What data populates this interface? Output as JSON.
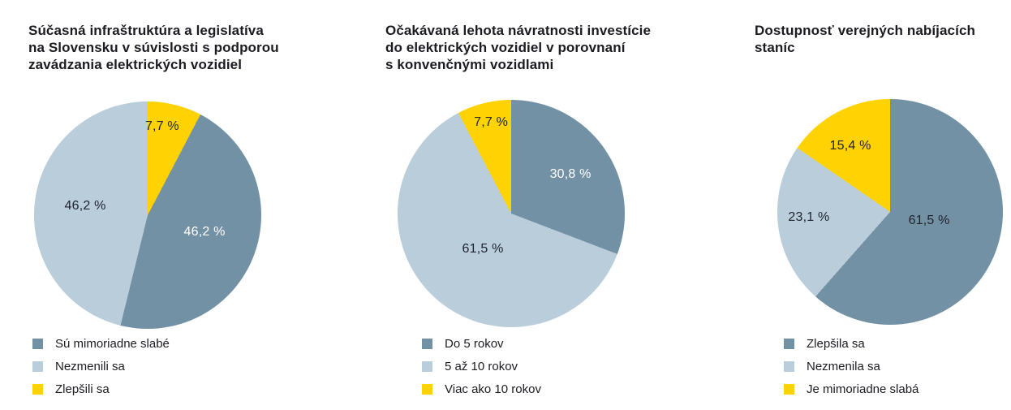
{
  "palette": {
    "dark": "#7391a5",
    "light": "#bacddb",
    "yellow": "#ffd303"
  },
  "colors": {
    "title_text": "#1b1b22",
    "label_dark": "#20242e",
    "label_white": "#ffffff",
    "background": "#ffffff"
  },
  "chart_data": [
    {
      "type": "pie",
      "title": "Súčasná infraštruktúra a legislatíva\nna Slovensku v súvislosti s podporou\nzavádzania elektrických vozidiel",
      "legend_position": "bottom-left",
      "legend": [
        {
          "label": "Sú mimoriadne slabé",
          "color": "dark"
        },
        {
          "label": "Nezmenili sa",
          "color": "light"
        },
        {
          "label": "Zlepšili sa",
          "color": "yellow"
        }
      ],
      "slices_clockwise_from_top": [
        {
          "name": "Zlepšili sa",
          "value": 7.7,
          "color": "yellow"
        },
        {
          "name": "Sú mimoriadne slabé",
          "value": 46.2,
          "color": "dark"
        },
        {
          "name": "Nezmenili sa",
          "value": 46.2,
          "color": "light"
        }
      ],
      "labels": [
        {
          "text": "7,7 %",
          "x": 56.4,
          "y": 11.1,
          "tone": "dark"
        },
        {
          "text": "46,2 %",
          "x": 22.5,
          "y": 46.0,
          "tone": "dark"
        },
        {
          "text": "46,2 %",
          "x": 75.0,
          "y": 57.5,
          "tone": "white"
        }
      ]
    },
    {
      "type": "pie",
      "title": "Očakávaná lehota návratnosti investície\ndo elektrických vozidiel v porovnaní\ns konvenčnými vozidlami",
      "legend_position": "bottom-left",
      "legend": [
        {
          "label": "Do 5 rokov",
          "color": "dark"
        },
        {
          "label": "5 až 10 rokov",
          "color": "light"
        },
        {
          "label": "Viac ako 10 rokov",
          "color": "yellow"
        }
      ],
      "slices_clockwise_from_top": [
        {
          "name": "Do 5 rokov",
          "value": 30.8,
          "color": "dark"
        },
        {
          "name": "5 až 10 rokov",
          "value": 61.5,
          "color": "light"
        },
        {
          "name": "Viac ako 10 rokov",
          "value": 7.7,
          "color": "yellow"
        }
      ],
      "labels": [
        {
          "text": "7,7 %",
          "x": 41.1,
          "y": 10.0,
          "tone": "dark"
        },
        {
          "text": "30,8 %",
          "x": 76.1,
          "y": 32.9,
          "tone": "white"
        },
        {
          "text": "61,5 %",
          "x": 37.5,
          "y": 65.7,
          "tone": "dark"
        }
      ]
    },
    {
      "type": "pie",
      "title": "Dostupnosť verejných nabíjacích\nstaníc",
      "legend_position": "bottom-left",
      "legend": [
        {
          "label": "Zlepšila sa",
          "color": "dark"
        },
        {
          "label": "Nezmenila sa",
          "color": "light"
        },
        {
          "label": "Je mimoriadne slabá",
          "color": "yellow"
        }
      ],
      "slices_clockwise_from_top": [
        {
          "name": "Zlepšila sa",
          "value": 61.5,
          "color": "dark"
        },
        {
          "name": "Nezmenila sa",
          "value": 23.1,
          "color": "light"
        },
        {
          "name": "Je mimoriadne slabá",
          "value": 15.4,
          "color": "yellow"
        }
      ],
      "labels": [
        {
          "text": "15,4 %",
          "x": 32.4,
          "y": 20.9,
          "tone": "dark"
        },
        {
          "text": "23,1 %",
          "x": 14.0,
          "y": 52.5,
          "tone": "dark"
        },
        {
          "text": "61,5 %",
          "x": 67.3,
          "y": 54.0,
          "tone": "dark"
        }
      ]
    }
  ]
}
